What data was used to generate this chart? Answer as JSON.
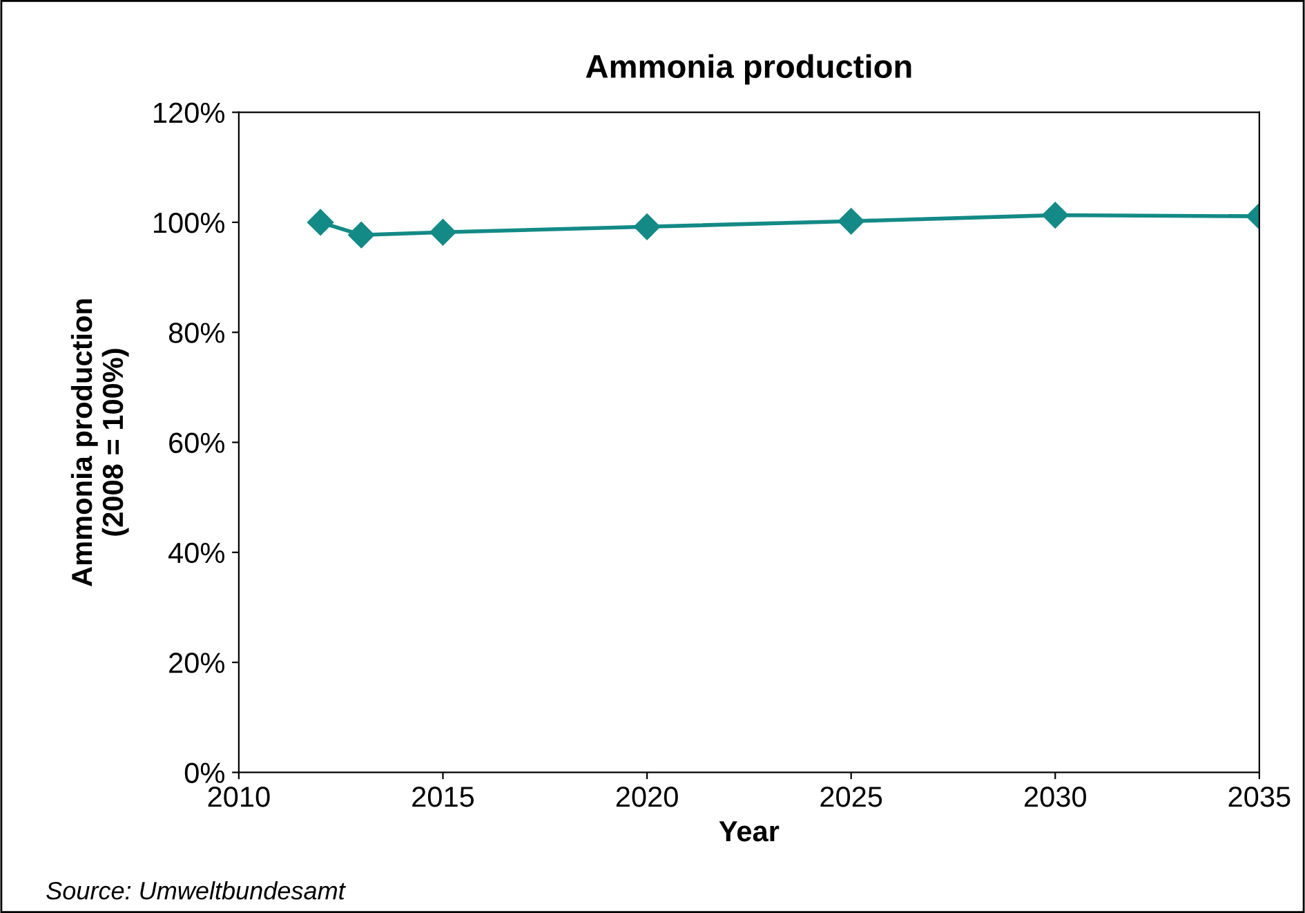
{
  "chart_data": {
    "type": "line",
    "title": "Ammonia production",
    "xlabel": "Year",
    "ylabel": "Ammonia production\n(2008 = 100%)",
    "x": [
      2012,
      2013,
      2015,
      2020,
      2025,
      2030,
      2035
    ],
    "series": [
      {
        "color": "#138a86",
        "values": [
          100,
          97.7,
          98.2,
          99.2,
          100.2,
          101.3,
          101.1
        ]
      }
    ],
    "xlim": [
      2010,
      2035
    ],
    "xticks": [
      2010,
      2015,
      2020,
      2025,
      2030,
      2035
    ],
    "ylim": [
      0,
      120
    ],
    "yticks": [
      {
        "value": 0,
        "label": "0%"
      },
      {
        "value": 20,
        "label": "20%"
      },
      {
        "value": 40,
        "label": "40%"
      },
      {
        "value": 60,
        "label": "60%"
      },
      {
        "value": 80,
        "label": "80%"
      },
      {
        "value": 100,
        "label": "100%"
      },
      {
        "value": 120,
        "label": "120%"
      }
    ],
    "grid": false,
    "legend": false,
    "marker": "diamond",
    "line_style": "solid",
    "annotations": [
      "Source: Umweltbundesamt"
    ]
  }
}
